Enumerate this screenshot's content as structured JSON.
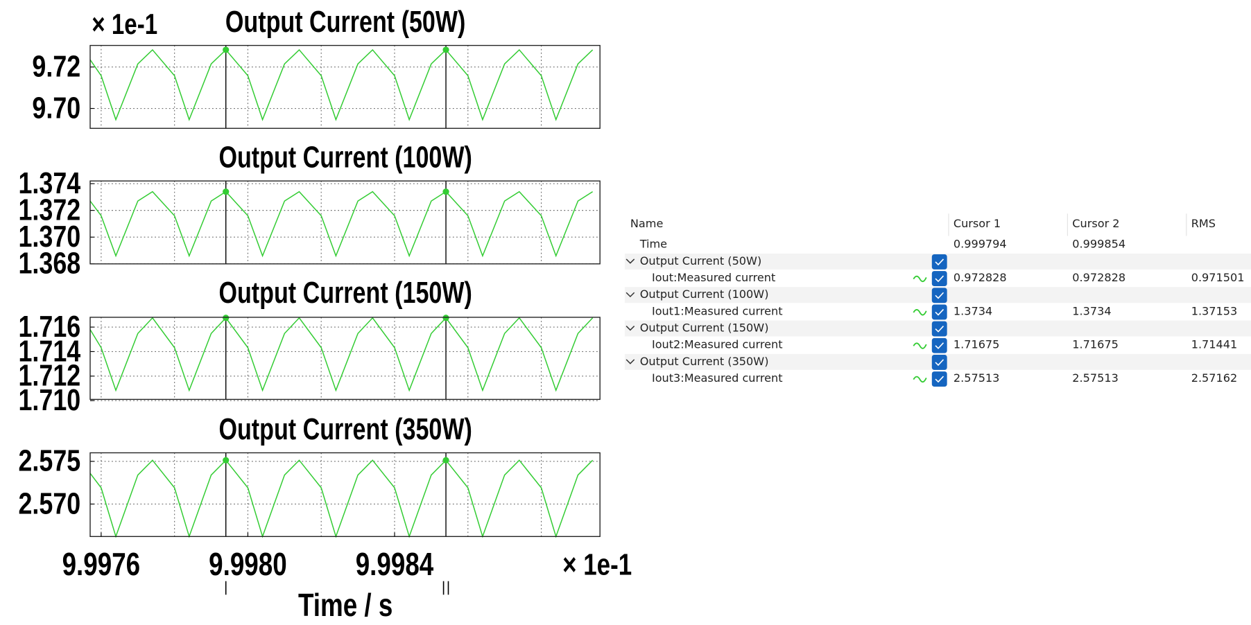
{
  "chart_data": [
    {
      "type": "line",
      "title": "Output Current (50W)",
      "y_multiplier": "× 1e-1",
      "x": [
        9.99757,
        9.9976,
        9.99764,
        9.9977,
        9.99774,
        9.9978,
        9.99784,
        9.9979,
        9.99794,
        9.998,
        9.99804,
        9.9981,
        9.99814,
        9.9982,
        9.99824,
        9.9983,
        9.99834,
        9.9984,
        9.99844,
        9.9985,
        9.99854,
        9.9986,
        9.99864,
        9.9987,
        9.99874,
        9.9988,
        9.99884,
        9.9989,
        9.99894
      ],
      "series": [
        {
          "color": "#33cc33",
          "values": [
            9.7235,
            9.7158,
            9.6946,
            9.7215,
            9.72828,
            9.7158,
            9.6946,
            9.7215,
            9.72828,
            9.7158,
            9.6946,
            9.7215,
            9.72828,
            9.7158,
            9.6946,
            9.7215,
            9.72828,
            9.7158,
            9.6946,
            9.7215,
            9.72828,
            9.7158,
            9.6946,
            9.7215,
            9.72828,
            9.7158,
            9.6946,
            9.7215,
            9.72828
          ]
        }
      ],
      "xlim": [
        9.99757,
        9.99896
      ],
      "xgrid": [
        9.9976,
        9.9978,
        9.998,
        9.9982,
        9.9984,
        9.9986,
        9.9988
      ],
      "ylim": [
        9.6904,
        9.7304
      ],
      "yticks": [
        9.72,
        {
          "value": 9.7,
          "label": "9.70"
        }
      ],
      "grid": true,
      "cursors": [
        9.99794,
        9.99854
      ]
    },
    {
      "type": "line",
      "title": "Output Current (100W)",
      "x": [
        9.99757,
        9.9976,
        9.99764,
        9.9977,
        9.99774,
        9.9978,
        9.99784,
        9.9979,
        9.99794,
        9.998,
        9.99804,
        9.9981,
        9.99814,
        9.9982,
        9.99824,
        9.9983,
        9.99834,
        9.9984,
        9.99844,
        9.9985,
        9.99854,
        9.9986,
        9.99864,
        9.9987,
        9.99874,
        9.9988,
        9.99884,
        9.9989,
        9.99894
      ],
      "series": [
        {
          "color": "#33cc33",
          "values": [
            1.3727,
            1.3716,
            1.3686,
            1.3727,
            1.3734,
            1.3716,
            1.3686,
            1.3727,
            1.3734,
            1.3716,
            1.3686,
            1.3727,
            1.3734,
            1.3716,
            1.3686,
            1.3727,
            1.3734,
            1.3716,
            1.3686,
            1.3727,
            1.3734,
            1.3716,
            1.3686,
            1.3727,
            1.3734,
            1.3716,
            1.3686,
            1.3727,
            1.3734
          ]
        }
      ],
      "xlim": [
        9.99757,
        9.99896
      ],
      "xgrid": [
        9.9976,
        9.9978,
        9.998,
        9.9982,
        9.9984,
        9.9986,
        9.9988
      ],
      "ylim": [
        1.368,
        1.3742
      ],
      "yticks": [
        1.374,
        1.372,
        {
          "value": 1.37,
          "label": "1.370"
        },
        1.368
      ],
      "grid": true,
      "cursors": [
        9.99794,
        9.99854
      ]
    },
    {
      "type": "line",
      "title": "Output Current (150W)",
      "x": [
        9.99757,
        9.9976,
        9.99764,
        9.9977,
        9.99774,
        9.9978,
        9.99784,
        9.9979,
        9.99794,
        9.998,
        9.99804,
        9.9981,
        9.99814,
        9.9982,
        9.99824,
        9.9983,
        9.99834,
        9.9984,
        9.99844,
        9.9985,
        9.99854,
        9.9986,
        9.99864,
        9.9987,
        9.99874,
        9.9988,
        9.99884,
        9.9989,
        9.99894
      ],
      "series": [
        {
          "color": "#33cc33",
          "values": [
            1.7158,
            1.71432,
            1.71084,
            1.71548,
            1.71675,
            1.71432,
            1.71084,
            1.71548,
            1.71675,
            1.71432,
            1.71084,
            1.71548,
            1.71675,
            1.71432,
            1.71084,
            1.71548,
            1.71675,
            1.71432,
            1.71084,
            1.71548,
            1.71675,
            1.71432,
            1.71084,
            1.71548,
            1.71675,
            1.71432,
            1.71084,
            1.71548,
            1.71675
          ]
        }
      ],
      "xlim": [
        9.99757,
        9.99896
      ],
      "xgrid": [
        9.9976,
        9.9978,
        9.998,
        9.9982,
        9.9984,
        9.9986,
        9.9988
      ],
      "ylim": [
        1.7101,
        1.7168
      ],
      "yticks": [
        1.716,
        1.714,
        1.712,
        {
          "value": 1.71,
          "label": "1.710"
        }
      ],
      "grid": true,
      "cursors": [
        9.99794,
        9.99854
      ]
    },
    {
      "type": "line",
      "title": "Output Current (350W)",
      "xlabel": "Time / s",
      "x_multiplier": "× 1e-1",
      "x": [
        9.99757,
        9.9976,
        9.99764,
        9.9977,
        9.99774,
        9.9978,
        9.99784,
        9.9979,
        9.99794,
        9.998,
        9.99804,
        9.9981,
        9.99814,
        9.9982,
        9.99824,
        9.9983,
        9.99834,
        9.9984,
        9.99844,
        9.9985,
        9.99854,
        9.9986,
        9.99864,
        9.9987,
        9.99874,
        9.9988,
        9.99884,
        9.9989,
        9.99894
      ],
      "series": [
        {
          "color": "#33cc33",
          "values": [
            2.5736,
            2.5719,
            2.5662,
            2.5734,
            2.57513,
            2.5719,
            2.5662,
            2.5734,
            2.57513,
            2.5719,
            2.5662,
            2.5734,
            2.57513,
            2.5719,
            2.5662,
            2.5734,
            2.57513,
            2.5719,
            2.5662,
            2.5734,
            2.57513,
            2.5719,
            2.5662,
            2.5734,
            2.57513,
            2.5719,
            2.5662,
            2.5734,
            2.57513
          ]
        }
      ],
      "xlim": [
        9.99757,
        9.99896
      ],
      "xgrid": [
        9.9976,
        9.9978,
        9.998,
        9.9982,
        9.9984,
        9.9986,
        9.9988
      ],
      "xticks": [
        9.9976,
        {
          "value": 9.998,
          "label": "9.9980"
        },
        9.9984
      ],
      "ylim": [
        2.5662,
        2.576
      ],
      "yticks": [
        2.575,
        {
          "value": 2.57,
          "label": "2.570"
        }
      ],
      "grid": true,
      "cursors": [
        9.99794,
        9.99854
      ]
    }
  ],
  "cursor_table": {
    "headers": [
      "Name",
      "Cursor 1",
      "Cursor 2",
      "RMS"
    ],
    "time": {
      "name": "Time",
      "cursor1": 0.999794,
      "cursor2": 0.999854
    },
    "groups": [
      {
        "name": "Output Current (50W)",
        "signal": {
          "name": "Iout:Measured current",
          "cursor1": 0.972828,
          "cursor2": 0.972828,
          "rms": 0.971501
        }
      },
      {
        "name": "Output Current (100W)",
        "signal": {
          "name": "Iout1:Measured current",
          "cursor1": 1.3734,
          "cursor2": 1.3734,
          "rms": 1.37153
        }
      },
      {
        "name": "Output Current (150W)",
        "signal": {
          "name": "Iout2:Measured current",
          "cursor1": 1.71675,
          "cursor2": 1.71675,
          "rms": 1.71441
        }
      },
      {
        "name": "Output Current (350W)",
        "signal": {
          "name": "Iout3:Measured current",
          "cursor1": 2.57513,
          "cursor2": 2.57513,
          "rms": 2.57162
        }
      }
    ]
  }
}
